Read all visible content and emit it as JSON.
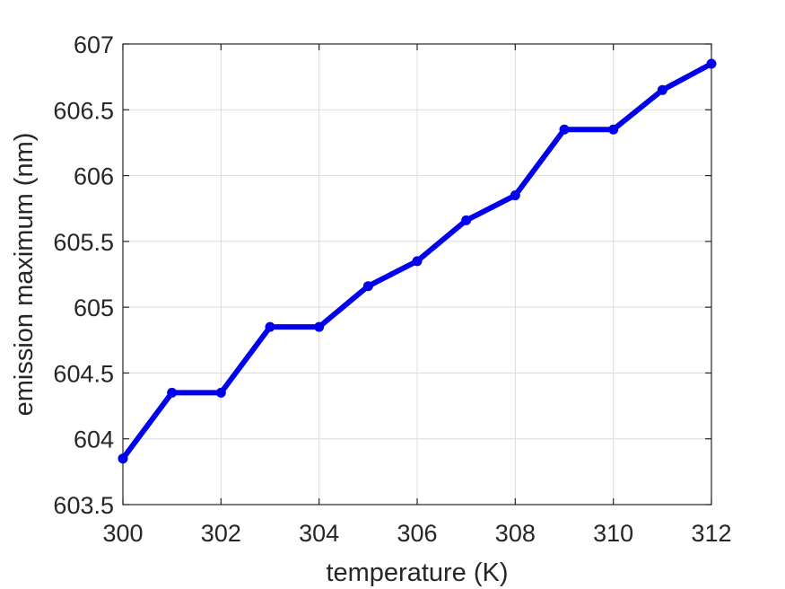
{
  "chart_data": {
    "type": "line",
    "title": "",
    "xlabel": "temperature (K)",
    "ylabel": "emission maximum (nm)",
    "xlim": [
      300,
      312
    ],
    "ylim": [
      603.5,
      607
    ],
    "xticks": [
      300,
      302,
      304,
      306,
      308,
      310,
      312
    ],
    "yticks": [
      603.5,
      604,
      604.5,
      605,
      605.5,
      606,
      606.5,
      607
    ],
    "xtick_labels": [
      "300",
      "302",
      "304",
      "306",
      "308",
      "310",
      "312"
    ],
    "ytick_labels": [
      "603.5",
      "604",
      "604.5",
      "605",
      "605.5",
      "606",
      "606.5",
      "607"
    ],
    "grid": true,
    "legend": "none",
    "series": [
      {
        "color": "#0000ee",
        "marker": "circle",
        "x": [
          300,
          301,
          302,
          303,
          304,
          305,
          306,
          307,
          308,
          309,
          310,
          311,
          312
        ],
        "y": [
          603.85,
          604.35,
          604.35,
          604.85,
          604.85,
          605.16,
          605.35,
          605.66,
          605.85,
          606.35,
          606.35,
          606.65,
          606.85
        ]
      }
    ]
  }
}
